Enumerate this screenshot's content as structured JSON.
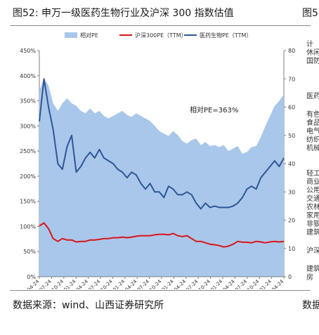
{
  "header": {
    "title": "图52: 申万一级医药生物行业及沪深 300 指数估值",
    "next_title": "图5"
  },
  "footer": {
    "source": "数据来源：wind、山西证券研究所",
    "next_source": "数据"
  },
  "side_labels": [
    "计",
    "休闲",
    "国防",
    "医药",
    "有色",
    "食品",
    "电气",
    "纺织",
    "机械",
    "轻工",
    "商业",
    "公用",
    "交通",
    "农林",
    "家用",
    "非银",
    "建筑",
    "沪深",
    "建筑",
    "房"
  ],
  "colors": {
    "area": "#a9c7ea",
    "hs300": "#d9141b",
    "pharma": "#2f5597",
    "axis": "#7f7f7f"
  },
  "chart_data": {
    "type": "line",
    "legend": [
      "相对PE",
      "沪深300PE（TTM）",
      "医药生物PE（TTM）"
    ],
    "legend_position": "top",
    "annotation": "相对PE=363%",
    "x_ticks": [
      "2015-04-24",
      "2015-07-24",
      "2015-10-24",
      "2016-01-24",
      "2016-04-24",
      "2016-07-24",
      "2016-10-24",
      "2017-01-24",
      "2017-04-24",
      "2017-07-24",
      "2017-10-24",
      "2018-01-24",
      "2018-04-24",
      "2018-07-24",
      "2018-10-24",
      "2019-01-24",
      "2019-04-24",
      "2019-07-24",
      "2019-10-24",
      "2020-01-24",
      "2020-04-24"
    ],
    "y_left": {
      "min": 0,
      "max": 450,
      "unit": "%",
      "ticks": [
        0,
        50,
        100,
        150,
        200,
        250,
        300,
        350,
        400,
        450
      ]
    },
    "y_right": {
      "min": 0,
      "max": 80,
      "ticks": [
        0,
        10,
        20,
        30,
        40,
        50,
        60,
        70,
        80
      ]
    },
    "series": [
      {
        "name": "相对PE",
        "axis": "left",
        "style": "area",
        "values": [
          370,
          395,
          380,
          345,
          330,
          345,
          355,
          345,
          340,
          330,
          325,
          335,
          325,
          330,
          320,
          315,
          320,
          325,
          330,
          322,
          318,
          325,
          320,
          315,
          310,
          300,
          290,
          285,
          280,
          290,
          282,
          270,
          265,
          272,
          275,
          262,
          268,
          260,
          262,
          258,
          262,
          250,
          255,
          260,
          245,
          248,
          258,
          260,
          278,
          300,
          320,
          340,
          350,
          363
        ]
      },
      {
        "name": "沪深300PE（TTM）",
        "axis": "right",
        "style": "line",
        "values": [
          18,
          19,
          17,
          13.5,
          12.5,
          13.5,
          13,
          13,
          12.3,
          12.5,
          12.5,
          13,
          13,
          13.2,
          13.5,
          13.5,
          13.8,
          13.8,
          14,
          13.8,
          14,
          14.3,
          14.5,
          14.5,
          14.5,
          14.8,
          15,
          15,
          14.8,
          15.3,
          14.5,
          14.2,
          14.5,
          13.5,
          12.5,
          12.5,
          12,
          11.5,
          11.3,
          11,
          10.5,
          10.8,
          11.5,
          12.5,
          12.2,
          12.2,
          12,
          12.5,
          12.3,
          12,
          12.3,
          12.5,
          12.3,
          12.5
        ]
      },
      {
        "name": "医药生物PE（TTM）",
        "axis": "right",
        "style": "line",
        "values": [
          55,
          70,
          60,
          52,
          40,
          38,
          46,
          50,
          37,
          39,
          42,
          44,
          42,
          45,
          42,
          41,
          40,
          38,
          37,
          35,
          37,
          36,
          33,
          31,
          33,
          30,
          30,
          28,
          32,
          31,
          29,
          29,
          30,
          29,
          26,
          24,
          26,
          24.5,
          25,
          24.5,
          24.5,
          24.5,
          25,
          26,
          28,
          31,
          32,
          31,
          35,
          37,
          39,
          41,
          39,
          42
        ]
      }
    ]
  }
}
